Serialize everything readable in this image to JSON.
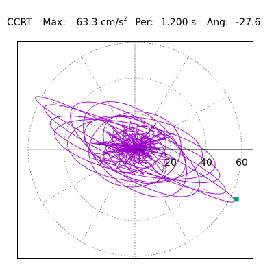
{
  "header": {
    "station": "CCRT",
    "max_label": "Max:",
    "max_value": "63.3 cm/s",
    "max_unit_exponent": "2",
    "per_label": "Per:",
    "per_value": "1.200 s",
    "ang_label": "Ang:",
    "ang_value": "-27.6"
  },
  "chart_data": {
    "type": "polar-particle-motion",
    "title": "",
    "rlim": [
      0,
      70
    ],
    "radial_ticks": [
      20,
      40,
      60
    ],
    "grid": true,
    "grid_style": "dotted",
    "angular_grid_step_deg": 30,
    "trace_color": "#9900cc",
    "end_marker_color": "#009977",
    "max_amplitude": 63.3,
    "angle_deg": -27.6,
    "trace_ellipses": [
      {
        "a": 63,
        "b": 6,
        "rot_deg": -27.6
      },
      {
        "a": 56,
        "b": 9,
        "rot_deg": -25
      },
      {
        "a": 50,
        "b": 11,
        "rot_deg": -18
      },
      {
        "a": 46,
        "b": 14,
        "rot_deg": -12
      },
      {
        "a": 42,
        "b": 16,
        "rot_deg": -33
      },
      {
        "a": 38,
        "b": 18,
        "rot_deg": -6
      },
      {
        "a": 34,
        "b": 20,
        "rot_deg": -40
      },
      {
        "a": 30,
        "b": 16,
        "rot_deg": -22
      },
      {
        "a": 26,
        "b": 21,
        "rot_deg": 8
      },
      {
        "a": 22,
        "b": 14,
        "rot_deg": -50
      },
      {
        "a": 18,
        "b": 12,
        "rot_deg": 20
      },
      {
        "a": 14,
        "b": 9,
        "rot_deg": -30
      },
      {
        "a": 10,
        "b": 7,
        "rot_deg": 40
      }
    ],
    "end_point": [
      57,
      -28
    ]
  }
}
